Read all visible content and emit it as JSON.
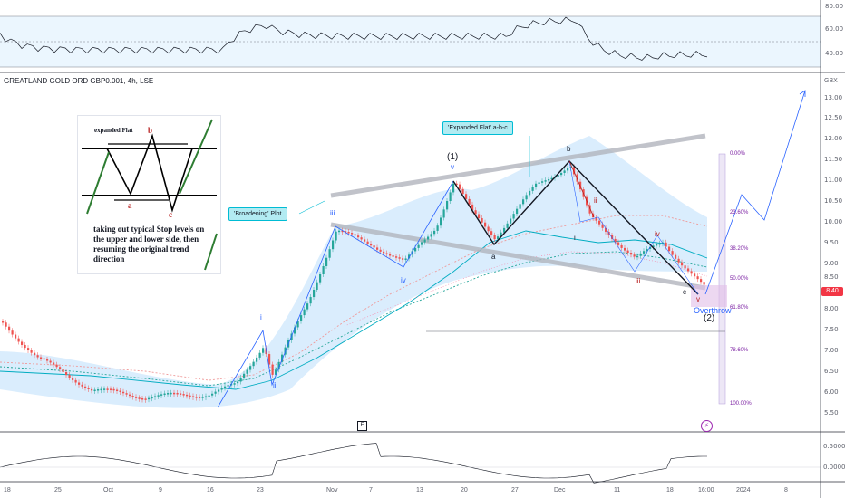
{
  "symbol": {
    "title": "GREATLAND GOLD ORD GBP0.001, 4h, LSE",
    "currency": "GBX",
    "last_price": "8.40"
  },
  "rsi_panel": {
    "axis_labels": [
      "80.00",
      "60.00",
      "40.00"
    ]
  },
  "price_axis": {
    "labels": [
      "13.00",
      "12.50",
      "12.00",
      "11.50",
      "11.00",
      "10.50",
      "10.00",
      "9.50",
      "9.00",
      "8.50",
      "8.00",
      "7.50",
      "7.00",
      "6.50",
      "6.00",
      "5.50"
    ]
  },
  "osc_panel": {
    "axis_labels": [
      "0.5000",
      "0.0000"
    ]
  },
  "time_axis": {
    "labels": [
      "18",
      "25",
      "Oct",
      "9",
      "16",
      "23",
      "Nov",
      "7",
      "13",
      "20",
      "27",
      "Dec",
      "11",
      "18",
      "16:00",
      "2024",
      "8"
    ]
  },
  "callouts": {
    "broadening": "'Broadening' Plot",
    "expanded_flat": "'Expanded Flat' a-b-c"
  },
  "inset": {
    "title": "expanded Flat",
    "label_a": "a",
    "label_b": "b",
    "label_c": "c",
    "text": "taking out typical Stop levels on the upper and lower side, then resuming the original trend direction"
  },
  "wave_labels": {
    "i": "i",
    "ii": "ii",
    "iii": "iii",
    "iv": "iv",
    "v": "v",
    "one": "(1)",
    "two": "(2)",
    "a": "a",
    "b": "b",
    "c": "c",
    "overthrow": "Overthrow"
  },
  "fib_levels": [
    "0.00%",
    "23.60%",
    "38.20%",
    "50.00%",
    "61.80%",
    "78.60%",
    "100.00%"
  ],
  "markers": {
    "earnings": "E",
    "bolt": "⚡"
  },
  "colors": {
    "up_candle": "#26a69a",
    "down_candle": "#ef5350",
    "wave_line": "#2962ff",
    "channel": "#b2b5be",
    "fib_box": "#b39ddb",
    "rsi_line": "#131722",
    "accent": "#00bcd4"
  }
}
